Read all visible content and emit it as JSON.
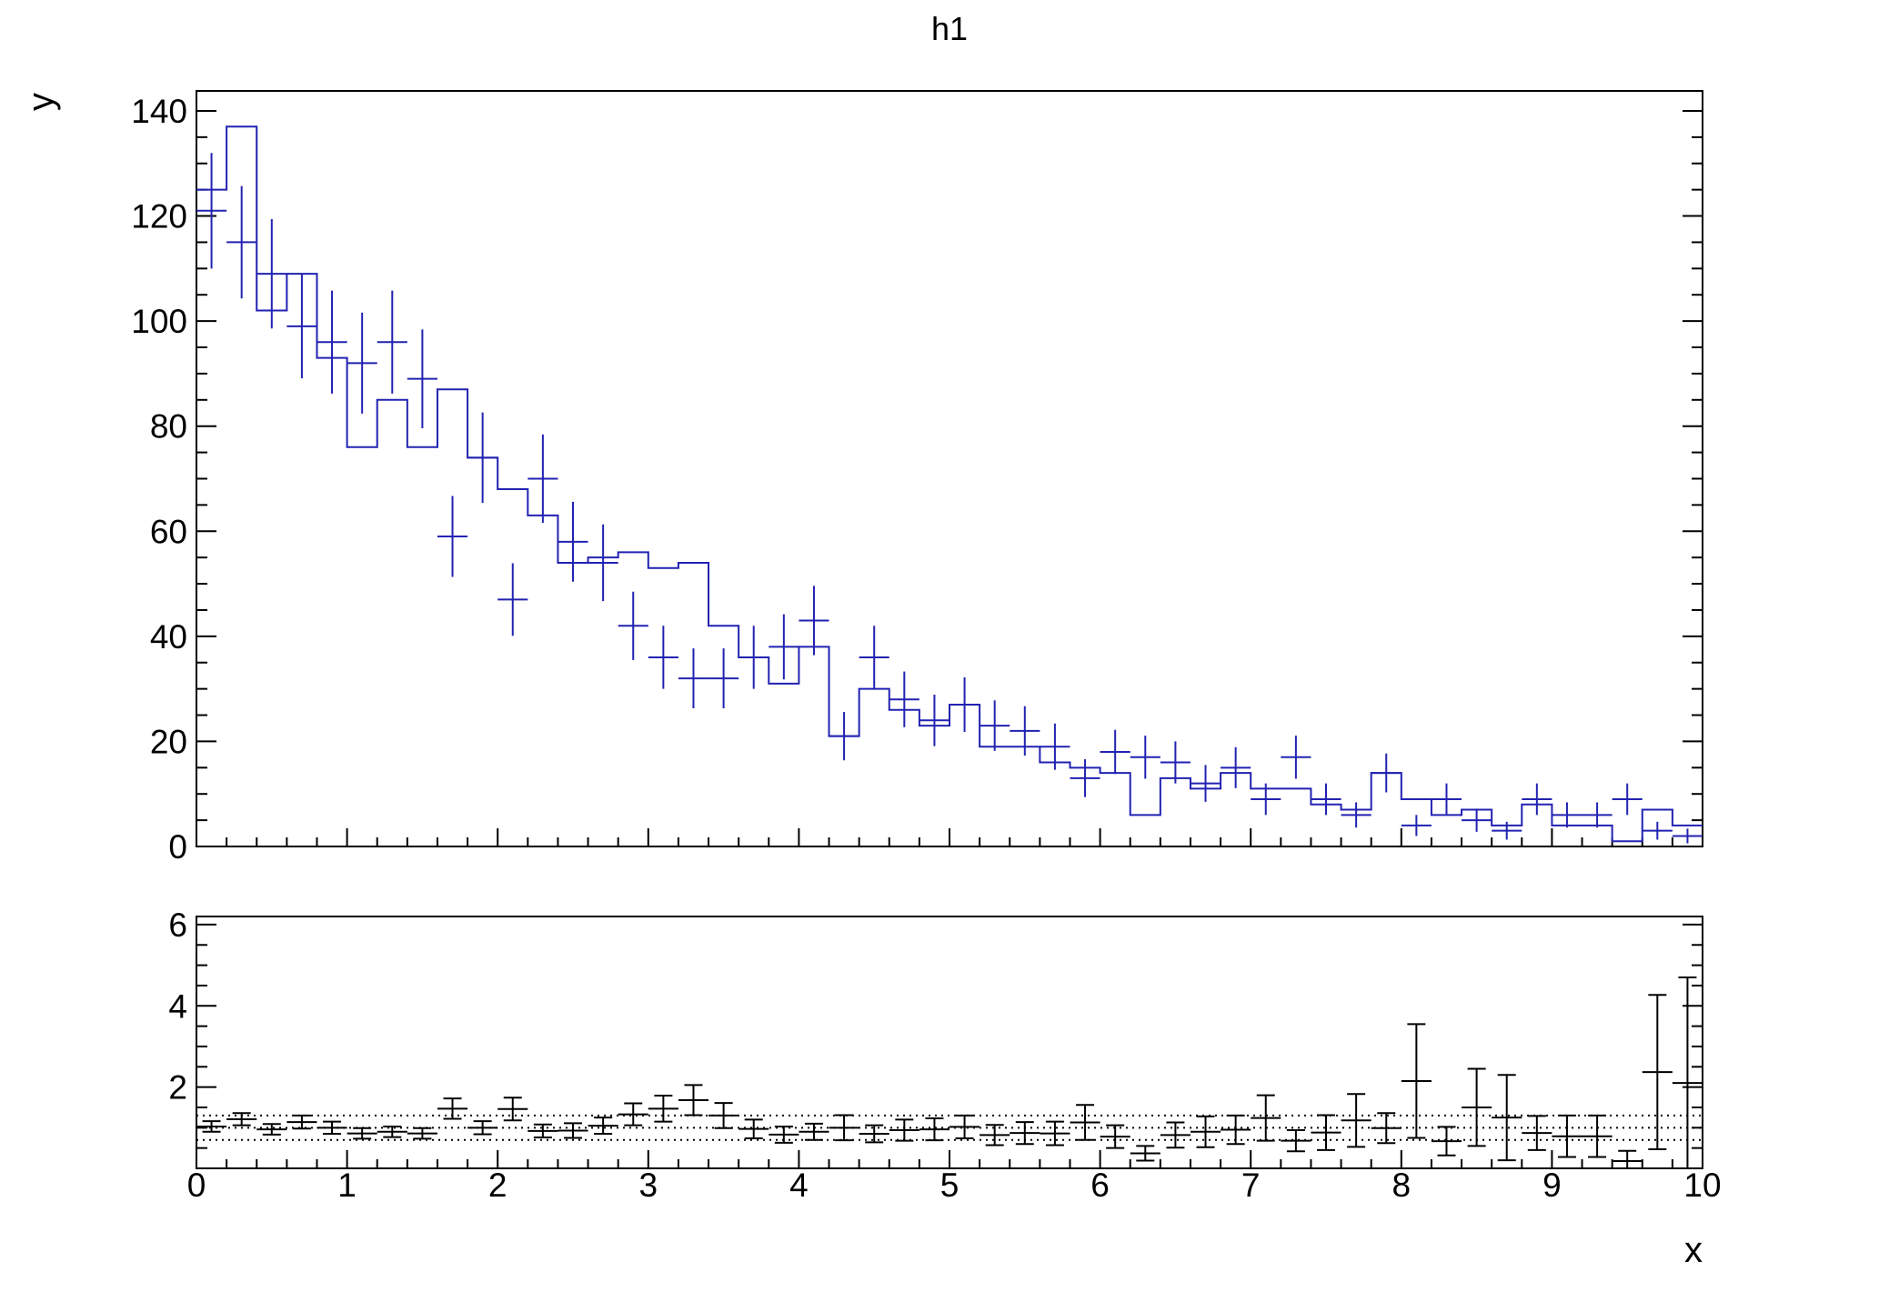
{
  "chart_data": {
    "type": "bar",
    "subtype": "root-histogram-with-ratio",
    "title": "h1",
    "xlabel": "x",
    "ylabel": "y",
    "x_range": [
      0,
      10
    ],
    "bin_width": 0.2,
    "n_bins": 50,
    "colors": {
      "histogram": "#2222b2",
      "data_points": "#2222b2",
      "ratio_points": "#000000",
      "frame": "#000000",
      "background": "#ffffff"
    },
    "main_panel": {
      "ylim": [
        0,
        143.8
      ],
      "ytick_labels": [
        "0",
        "20",
        "40",
        "60",
        "80",
        "100",
        "120",
        "140"
      ],
      "ytick_values": [
        0,
        20,
        40,
        60,
        80,
        100,
        120,
        140
      ],
      "y_minor_step": 5,
      "x_minor_step": 0.2,
      "grid": false,
      "hist_values": [
        125,
        137,
        102,
        109,
        93,
        76,
        85,
        76,
        87,
        74,
        68,
        63,
        54,
        55,
        56,
        53,
        54,
        42,
        36,
        31,
        38,
        21,
        30,
        26,
        23,
        27,
        19,
        19,
        16,
        15,
        14,
        6,
        13,
        11,
        14,
        11,
        11,
        8,
        7,
        14,
        9,
        6,
        7,
        4,
        8,
        4,
        4,
        1,
        7,
        4
      ],
      "data_values": [
        121,
        115,
        109,
        99,
        96,
        92,
        96,
        89,
        59,
        74,
        47,
        70,
        58,
        54,
        42,
        36,
        32,
        32,
        36,
        38,
        43,
        21,
        36,
        28,
        24,
        27,
        23,
        22,
        19,
        13,
        18,
        17,
        16,
        12,
        15,
        9,
        17,
        9,
        6,
        14,
        4,
        9,
        5,
        3,
        9,
        6,
        6,
        9,
        3,
        2
      ],
      "data_errors": [
        11.0,
        10.7,
        10.4,
        9.9,
        9.8,
        9.6,
        9.8,
        9.4,
        7.7,
        8.6,
        6.9,
        8.4,
        7.6,
        7.3,
        6.5,
        6.0,
        5.7,
        5.7,
        6.0,
        6.2,
        6.6,
        4.6,
        6.0,
        5.3,
        4.9,
        5.2,
        4.8,
        4.7,
        4.4,
        3.6,
        4.2,
        4.1,
        4.0,
        3.5,
        3.9,
        3.0,
        4.1,
        3.0,
        2.4,
        3.7,
        2.0,
        3.0,
        2.2,
        1.7,
        3.0,
        2.4,
        2.4,
        3.0,
        1.7,
        1.4
      ]
    },
    "ratio_panel": {
      "ylim": [
        0,
        6.2
      ],
      "ytick_labels": [
        "2",
        "4",
        "6"
      ],
      "ytick_values": [
        2,
        4,
        6
      ],
      "y_minor_step": 0.5,
      "xtick_labels": [
        "0",
        "1",
        "2",
        "3",
        "4",
        "5",
        "6",
        "7",
        "8",
        "9",
        "10"
      ],
      "xtick_values": [
        0,
        1,
        2,
        3,
        4,
        5,
        6,
        7,
        8,
        9,
        10
      ],
      "x_minor_step": 0.2,
      "dotted_lines": [
        0.7,
        1.0,
        1.3
      ],
      "ratio_values": [
        1.03,
        1.21,
        0.96,
        1.14,
        1.0,
        0.86,
        0.9,
        0.86,
        1.47,
        1.0,
        1.46,
        0.92,
        0.93,
        1.05,
        1.33,
        1.47,
        1.68,
        1.3,
        0.97,
        0.83,
        0.9,
        1.0,
        0.85,
        0.94,
        0.96,
        1.02,
        0.82,
        0.87,
        0.86,
        1.13,
        0.78,
        0.37,
        0.82,
        0.9,
        0.95,
        1.24,
        0.68,
        0.88,
        1.18,
        0.99,
        2.15,
        0.67,
        1.5,
        1.25,
        0.87,
        0.79,
        0.79,
        0.18,
        2.37,
        2.1
      ],
      "ratio_errors": [
        0.13,
        0.15,
        0.13,
        0.16,
        0.15,
        0.13,
        0.13,
        0.13,
        0.25,
        0.16,
        0.28,
        0.16,
        0.18,
        0.2,
        0.27,
        0.32,
        0.37,
        0.31,
        0.23,
        0.2,
        0.2,
        0.31,
        0.21,
        0.26,
        0.27,
        0.28,
        0.25,
        0.27,
        0.29,
        0.43,
        0.28,
        0.18,
        0.31,
        0.38,
        0.35,
        0.56,
        0.26,
        0.43,
        0.65,
        0.37,
        1.4,
        0.35,
        0.95,
        1.05,
        0.42,
        0.51,
        0.51,
        0.25,
        1.9,
        2.6
      ]
    }
  },
  "layout_text": {
    "note": "static ROOT TCanvas rendering, no interactive widgets visible"
  }
}
